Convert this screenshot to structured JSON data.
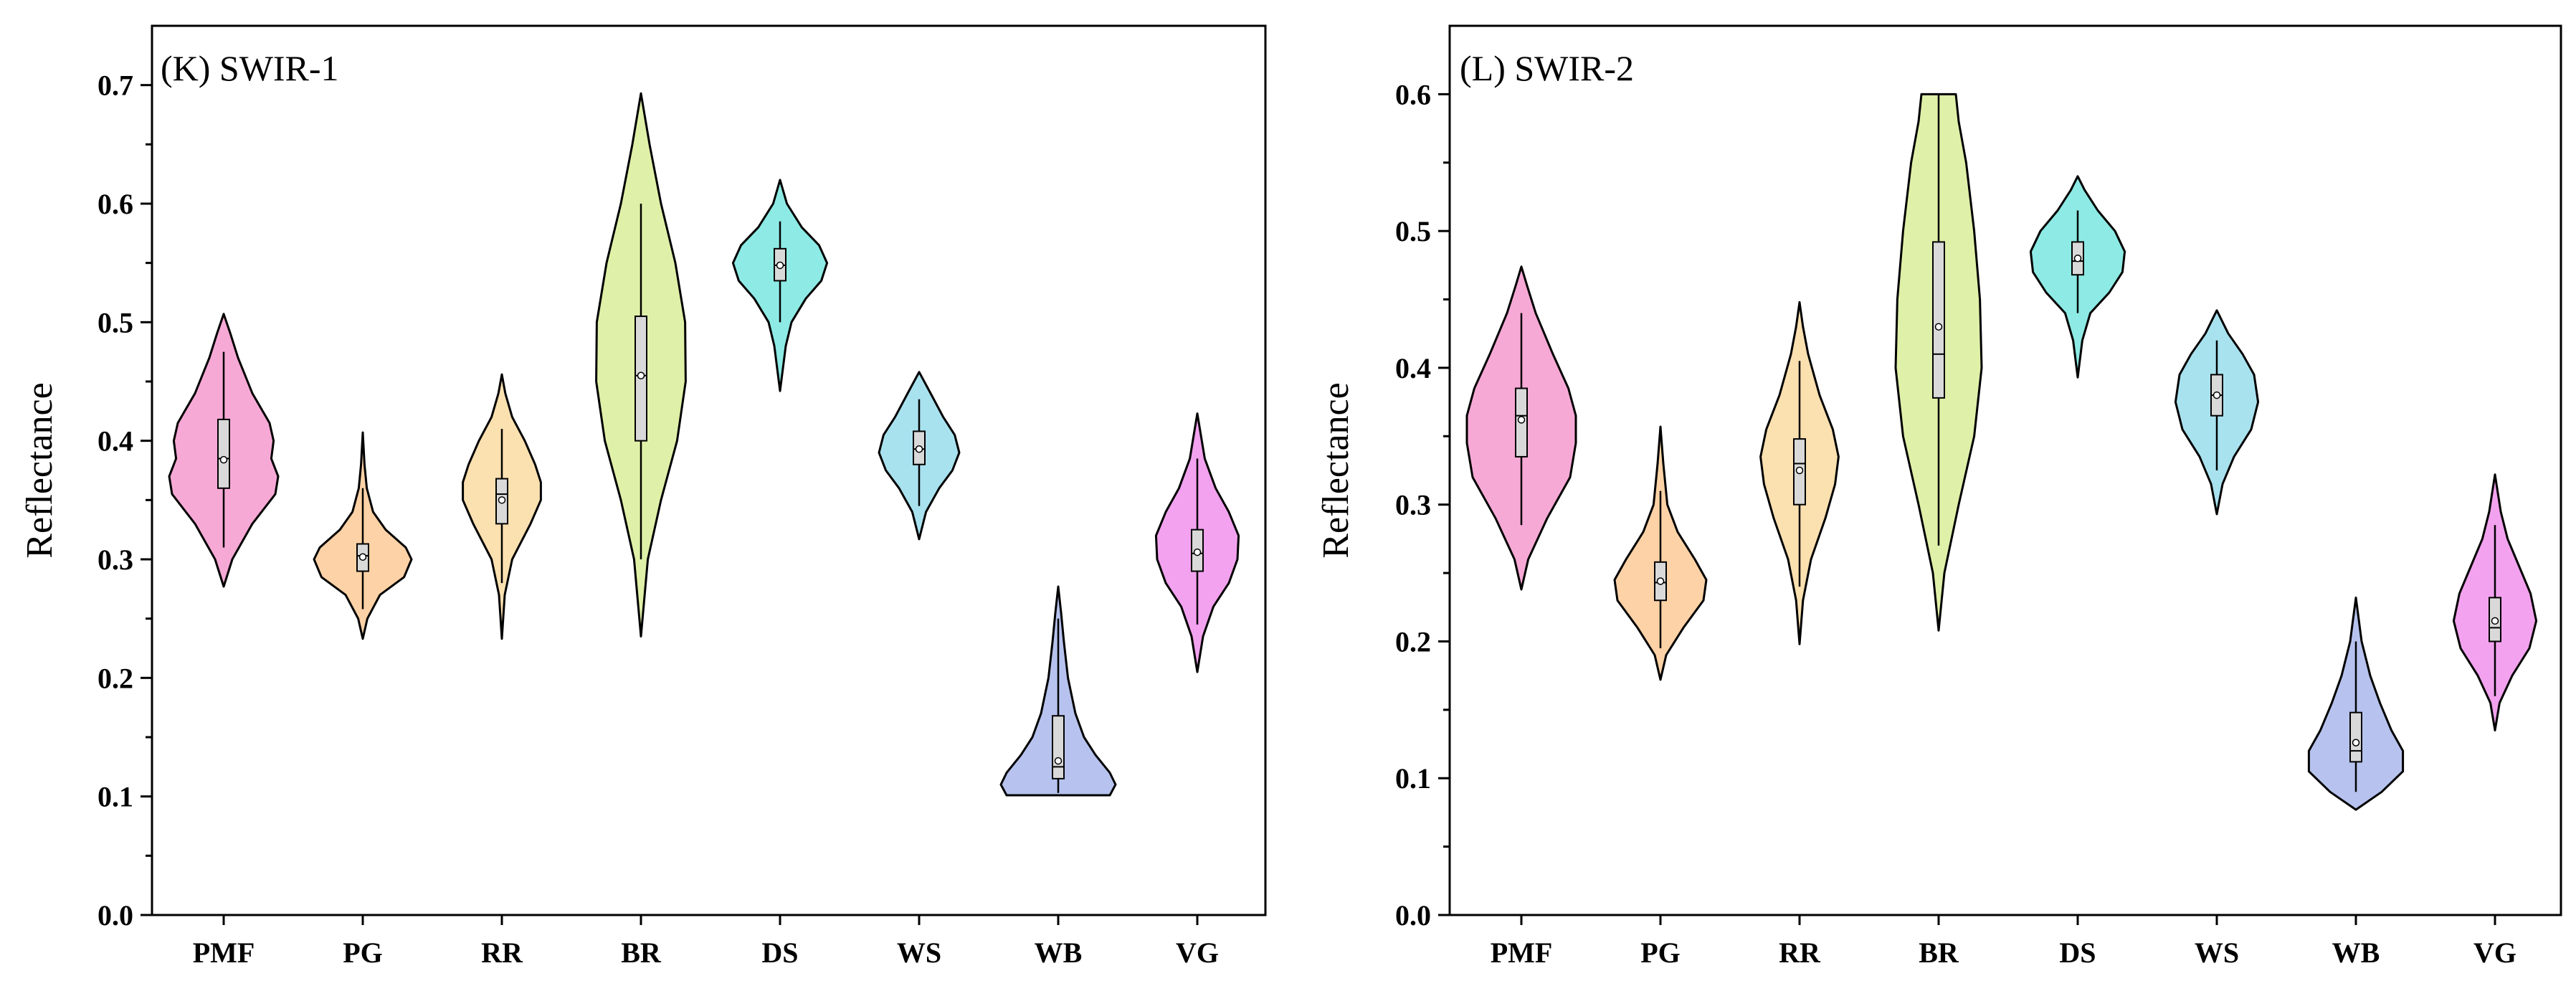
{
  "colors": {
    "PMF": "#f7a9d6",
    "PG": "#fdd2a6",
    "RR": "#fbe0b0",
    "BR": "#dff0a8",
    "DS": "#8eeae4",
    "WS": "#a9e2ef",
    "WB": "#b7c3ee",
    "VG": "#f2a2ee",
    "box_fill": "#d9d9d9",
    "outline": "#000000"
  },
  "chart_data": [
    {
      "type": "violin",
      "title": "(K) SWIR-1",
      "ylabel": "Reflectance",
      "xlabel": "",
      "ylim": [
        0.0,
        0.75
      ],
      "yticks": [
        0.0,
        0.1,
        0.2,
        0.3,
        0.4,
        0.5,
        0.6,
        0.7
      ],
      "ytick_labels": [
        "0.0",
        "0.1",
        "0.2",
        "0.3",
        "0.4",
        "0.5",
        "0.6",
        "0.7"
      ],
      "categories": [
        "PMF",
        "PG",
        "RR",
        "BR",
        "DS",
        "WS",
        "WB",
        "VG"
      ],
      "series": [
        {
          "name": "PMF",
          "min": 0.277,
          "max": 0.507,
          "q1": 0.36,
          "median": 0.385,
          "q3": 0.418,
          "mean": 0.384,
          "whisker_low": 0.31,
          "whisker_high": 0.475,
          "profile": [
            [
              0.277,
              0.0
            ],
            [
              0.3,
              0.15
            ],
            [
              0.33,
              0.5
            ],
            [
              0.355,
              0.9
            ],
            [
              0.37,
              0.95
            ],
            [
              0.385,
              0.83
            ],
            [
              0.4,
              0.87
            ],
            [
              0.415,
              0.8
            ],
            [
              0.44,
              0.5
            ],
            [
              0.47,
              0.25
            ],
            [
              0.49,
              0.12
            ],
            [
              0.507,
              0.0
            ]
          ]
        },
        {
          "name": "PG",
          "min": 0.233,
          "max": 0.407,
          "q1": 0.29,
          "median": 0.303,
          "q3": 0.313,
          "mean": 0.302,
          "whisker_low": 0.258,
          "whisker_high": 0.36,
          "profile": [
            [
              0.233,
              0.0
            ],
            [
              0.25,
              0.08
            ],
            [
              0.27,
              0.3
            ],
            [
              0.285,
              0.72
            ],
            [
              0.3,
              0.85
            ],
            [
              0.31,
              0.75
            ],
            [
              0.325,
              0.4
            ],
            [
              0.34,
              0.18
            ],
            [
              0.36,
              0.07
            ],
            [
              0.38,
              0.03
            ],
            [
              0.407,
              0.0
            ]
          ]
        },
        {
          "name": "RR",
          "min": 0.233,
          "max": 0.456,
          "q1": 0.33,
          "median": 0.355,
          "q3": 0.368,
          "mean": 0.35,
          "whisker_low": 0.28,
          "whisker_high": 0.41,
          "profile": [
            [
              0.233,
              0.0
            ],
            [
              0.27,
              0.05
            ],
            [
              0.3,
              0.18
            ],
            [
              0.33,
              0.5
            ],
            [
              0.35,
              0.68
            ],
            [
              0.365,
              0.68
            ],
            [
              0.38,
              0.58
            ],
            [
              0.4,
              0.4
            ],
            [
              0.42,
              0.18
            ],
            [
              0.44,
              0.06
            ],
            [
              0.456,
              0.0
            ]
          ]
        },
        {
          "name": "BR",
          "min": 0.235,
          "max": 0.693,
          "q1": 0.4,
          "median": 0.455,
          "q3": 0.505,
          "mean": 0.455,
          "whisker_low": 0.3,
          "whisker_high": 0.6,
          "profile": [
            [
              0.235,
              0.0
            ],
            [
              0.3,
              0.12
            ],
            [
              0.35,
              0.35
            ],
            [
              0.4,
              0.63
            ],
            [
              0.45,
              0.78
            ],
            [
              0.5,
              0.77
            ],
            [
              0.55,
              0.6
            ],
            [
              0.6,
              0.35
            ],
            [
              0.65,
              0.15
            ],
            [
              0.693,
              0.0
            ]
          ]
        },
        {
          "name": "DS",
          "min": 0.442,
          "max": 0.62,
          "q1": 0.535,
          "median": 0.548,
          "q3": 0.562,
          "mean": 0.548,
          "whisker_low": 0.5,
          "whisker_high": 0.585,
          "profile": [
            [
              0.442,
              0.0
            ],
            [
              0.48,
              0.1
            ],
            [
              0.5,
              0.2
            ],
            [
              0.52,
              0.45
            ],
            [
              0.535,
              0.72
            ],
            [
              0.55,
              0.82
            ],
            [
              0.565,
              0.68
            ],
            [
              0.58,
              0.38
            ],
            [
              0.6,
              0.12
            ],
            [
              0.62,
              0.0
            ]
          ]
        },
        {
          "name": "WS",
          "min": 0.317,
          "max": 0.458,
          "q1": 0.38,
          "median": 0.393,
          "q3": 0.408,
          "mean": 0.393,
          "whisker_low": 0.345,
          "whisker_high": 0.435,
          "profile": [
            [
              0.317,
              0.0
            ],
            [
              0.34,
              0.12
            ],
            [
              0.36,
              0.35
            ],
            [
              0.375,
              0.58
            ],
            [
              0.39,
              0.7
            ],
            [
              0.405,
              0.62
            ],
            [
              0.42,
              0.42
            ],
            [
              0.44,
              0.2
            ],
            [
              0.458,
              0.0
            ]
          ]
        },
        {
          "name": "WB",
          "min": 0.101,
          "max": 0.277,
          "q1": 0.115,
          "median": 0.125,
          "q3": 0.168,
          "mean": 0.13,
          "whisker_low": 0.103,
          "whisker_high": 0.25,
          "profile": [
            [
              0.101,
              0.9
            ],
            [
              0.11,
              1.0
            ],
            [
              0.12,
              0.9
            ],
            [
              0.135,
              0.65
            ],
            [
              0.15,
              0.45
            ],
            [
              0.17,
              0.3
            ],
            [
              0.2,
              0.17
            ],
            [
              0.23,
              0.1
            ],
            [
              0.255,
              0.05
            ],
            [
              0.277,
              0.0
            ]
          ]
        },
        {
          "name": "VG",
          "min": 0.205,
          "max": 0.423,
          "q1": 0.29,
          "median": 0.305,
          "q3": 0.325,
          "mean": 0.306,
          "whisker_low": 0.245,
          "whisker_high": 0.385,
          "profile": [
            [
              0.205,
              0.0
            ],
            [
              0.235,
              0.1
            ],
            [
              0.26,
              0.28
            ],
            [
              0.28,
              0.55
            ],
            [
              0.3,
              0.7
            ],
            [
              0.32,
              0.72
            ],
            [
              0.34,
              0.55
            ],
            [
              0.36,
              0.32
            ],
            [
              0.385,
              0.13
            ],
            [
              0.423,
              0.0
            ]
          ]
        }
      ]
    },
    {
      "type": "violin",
      "title": "(L) SWIR-2",
      "ylabel": "Reflectance",
      "xlabel": "",
      "ylim": [
        0.0,
        0.65
      ],
      "yticks": [
        0.0,
        0.1,
        0.2,
        0.3,
        0.4,
        0.5,
        0.6
      ],
      "ytick_labels": [
        "0.0",
        "0.1",
        "0.2",
        "0.3",
        "0.4",
        "0.5",
        "0.6"
      ],
      "categories": [
        "PMF",
        "PG",
        "RR",
        "BR",
        "DS",
        "WS",
        "WB",
        "VG"
      ],
      "series": [
        {
          "name": "PMF",
          "min": 0.238,
          "max": 0.474,
          "q1": 0.335,
          "median": 0.365,
          "q3": 0.385,
          "mean": 0.362,
          "whisker_low": 0.285,
          "whisker_high": 0.44,
          "profile": [
            [
              0.238,
              0.0
            ],
            [
              0.26,
              0.12
            ],
            [
              0.29,
              0.45
            ],
            [
              0.32,
              0.85
            ],
            [
              0.345,
              0.95
            ],
            [
              0.365,
              0.95
            ],
            [
              0.385,
              0.82
            ],
            [
              0.41,
              0.55
            ],
            [
              0.44,
              0.25
            ],
            [
              0.46,
              0.1
            ],
            [
              0.474,
              0.0
            ]
          ]
        },
        {
          "name": "PG",
          "min": 0.172,
          "max": 0.357,
          "q1": 0.23,
          "median": 0.243,
          "q3": 0.258,
          "mean": 0.244,
          "whisker_low": 0.195,
          "whisker_high": 0.31,
          "profile": [
            [
              0.172,
              0.0
            ],
            [
              0.19,
              0.1
            ],
            [
              0.21,
              0.4
            ],
            [
              0.23,
              0.75
            ],
            [
              0.245,
              0.8
            ],
            [
              0.26,
              0.6
            ],
            [
              0.28,
              0.3
            ],
            [
              0.3,
              0.12
            ],
            [
              0.33,
              0.05
            ],
            [
              0.357,
              0.0
            ]
          ]
        },
        {
          "name": "RR",
          "min": 0.198,
          "max": 0.448,
          "q1": 0.3,
          "median": 0.33,
          "q3": 0.348,
          "mean": 0.325,
          "whisker_low": 0.24,
          "whisker_high": 0.405,
          "profile": [
            [
              0.198,
              0.0
            ],
            [
              0.23,
              0.06
            ],
            [
              0.26,
              0.2
            ],
            [
              0.29,
              0.45
            ],
            [
              0.315,
              0.62
            ],
            [
              0.335,
              0.68
            ],
            [
              0.355,
              0.58
            ],
            [
              0.38,
              0.35
            ],
            [
              0.41,
              0.15
            ],
            [
              0.43,
              0.06
            ],
            [
              0.448,
              0.0
            ]
          ]
        },
        {
          "name": "BR",
          "min": 0.208,
          "max": 0.6,
          "q1": 0.378,
          "median": 0.41,
          "q3": 0.492,
          "mean": 0.43,
          "whisker_low": 0.27,
          "whisker_high": 0.6,
          "profile": [
            [
              0.208,
              0.0
            ],
            [
              0.25,
              0.1
            ],
            [
              0.3,
              0.35
            ],
            [
              0.35,
              0.62
            ],
            [
              0.4,
              0.75
            ],
            [
              0.45,
              0.72
            ],
            [
              0.5,
              0.62
            ],
            [
              0.55,
              0.48
            ],
            [
              0.58,
              0.35
            ],
            [
              0.6,
              0.3
            ]
          ]
        },
        {
          "name": "DS",
          "min": 0.393,
          "max": 0.54,
          "q1": 0.468,
          "median": 0.478,
          "q3": 0.492,
          "mean": 0.48,
          "whisker_low": 0.44,
          "whisker_high": 0.515,
          "profile": [
            [
              0.393,
              0.0
            ],
            [
              0.42,
              0.08
            ],
            [
              0.44,
              0.22
            ],
            [
              0.455,
              0.55
            ],
            [
              0.47,
              0.78
            ],
            [
              0.485,
              0.82
            ],
            [
              0.5,
              0.65
            ],
            [
              0.515,
              0.35
            ],
            [
              0.53,
              0.12
            ],
            [
              0.54,
              0.0
            ]
          ]
        },
        {
          "name": "WS",
          "min": 0.293,
          "max": 0.442,
          "q1": 0.365,
          "median": 0.38,
          "q3": 0.395,
          "mean": 0.38,
          "whisker_low": 0.325,
          "whisker_high": 0.42,
          "profile": [
            [
              0.293,
              0.0
            ],
            [
              0.315,
              0.1
            ],
            [
              0.335,
              0.3
            ],
            [
              0.355,
              0.6
            ],
            [
              0.375,
              0.72
            ],
            [
              0.395,
              0.65
            ],
            [
              0.41,
              0.45
            ],
            [
              0.425,
              0.2
            ],
            [
              0.442,
              0.0
            ]
          ]
        },
        {
          "name": "WB",
          "min": 0.077,
          "max": 0.232,
          "q1": 0.112,
          "median": 0.12,
          "q3": 0.148,
          "mean": 0.126,
          "whisker_low": 0.09,
          "whisker_high": 0.2,
          "profile": [
            [
              0.077,
              0.0
            ],
            [
              0.09,
              0.45
            ],
            [
              0.105,
              0.82
            ],
            [
              0.12,
              0.82
            ],
            [
              0.135,
              0.62
            ],
            [
              0.155,
              0.42
            ],
            [
              0.175,
              0.25
            ],
            [
              0.2,
              0.1
            ],
            [
              0.232,
              0.0
            ]
          ]
        },
        {
          "name": "VG",
          "min": 0.135,
          "max": 0.322,
          "q1": 0.2,
          "median": 0.21,
          "q3": 0.232,
          "mean": 0.215,
          "whisker_low": 0.16,
          "whisker_high": 0.285,
          "profile": [
            [
              0.135,
              0.0
            ],
            [
              0.155,
              0.08
            ],
            [
              0.175,
              0.3
            ],
            [
              0.195,
              0.6
            ],
            [
              0.215,
              0.72
            ],
            [
              0.235,
              0.62
            ],
            [
              0.255,
              0.42
            ],
            [
              0.275,
              0.22
            ],
            [
              0.295,
              0.1
            ],
            [
              0.322,
              0.0
            ]
          ]
        }
      ]
    }
  ]
}
